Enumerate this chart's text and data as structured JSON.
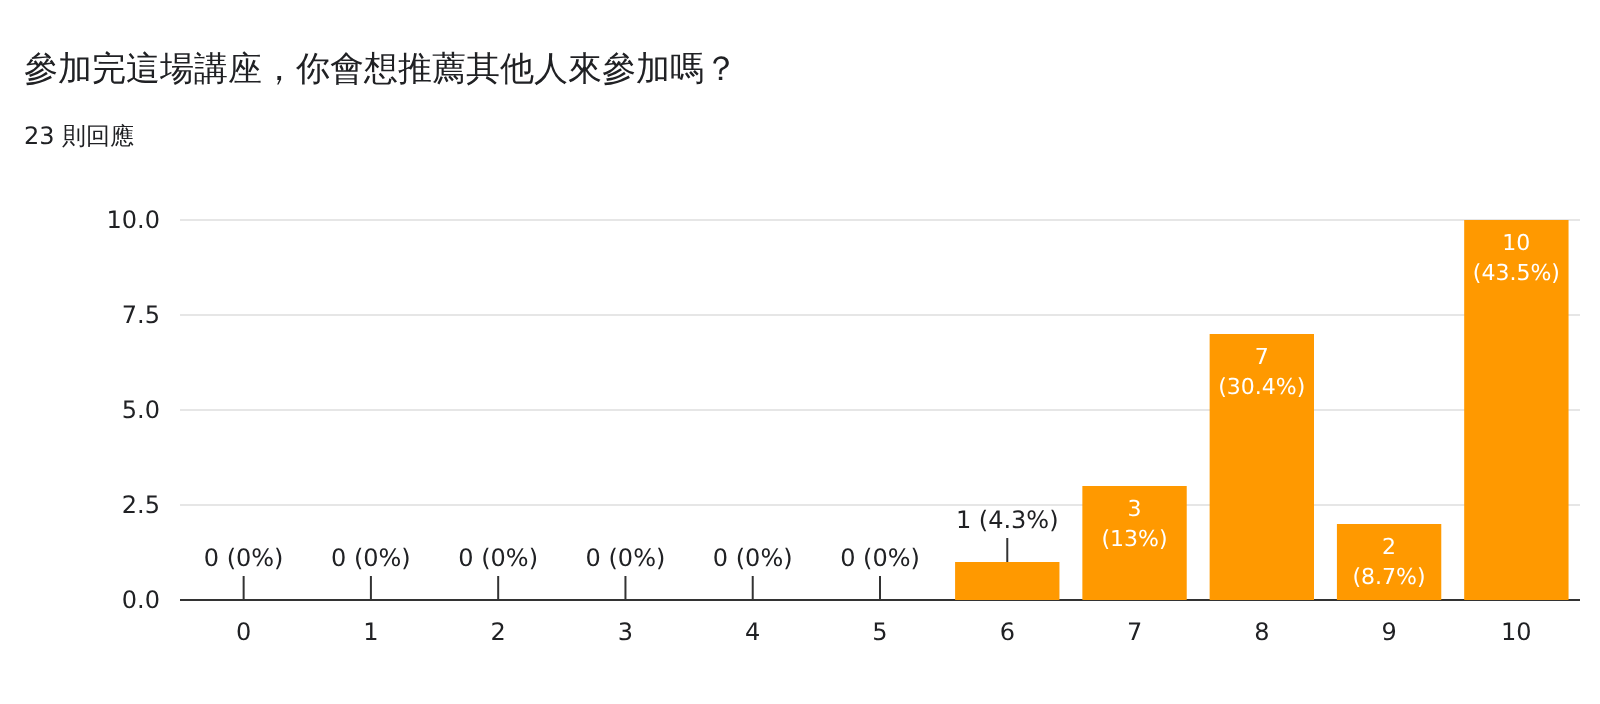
{
  "chart_data": {
    "type": "bar",
    "title": "參加完這場講座，你會想推薦其他人來參加嗎？",
    "subtitle": "23 則回應",
    "categories": [
      "0",
      "1",
      "2",
      "3",
      "4",
      "5",
      "6",
      "7",
      "8",
      "9",
      "10"
    ],
    "values": [
      0,
      0,
      0,
      0,
      0,
      0,
      1,
      3,
      7,
      2,
      10
    ],
    "value_labels": [
      "0 (0%)",
      "0 (0%)",
      "0 (0%)",
      "0 (0%)",
      "0 (0%)",
      "0 (0%)",
      "1 (4.3%)",
      "3 (13%)",
      "7 (30.4%)",
      "2 (8.7%)",
      "10 (43.5%)"
    ],
    "color": "#ff9900",
    "ylim": [
      0,
      10
    ],
    "yticks": [
      {
        "value": 0,
        "label": "0.0"
      },
      {
        "value": 2.5,
        "label": "2.5"
      },
      {
        "value": 5,
        "label": "5.0"
      },
      {
        "value": 7.5,
        "label": "7.5"
      },
      {
        "value": 10,
        "label": "10.0"
      }
    ],
    "grid": "y"
  }
}
